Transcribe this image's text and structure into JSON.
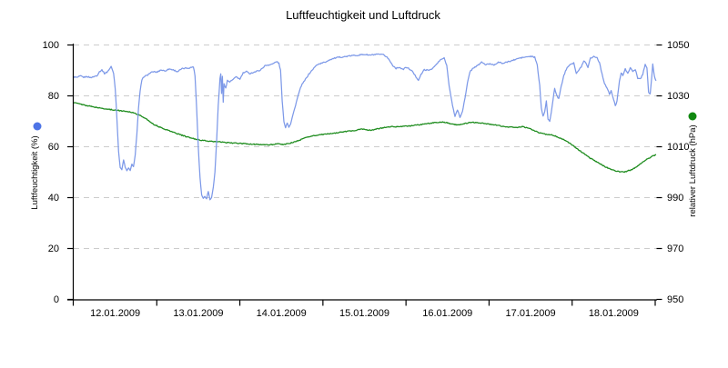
{
  "chart_data": {
    "type": "line",
    "title": "Luftfeuchtigkeit und Luftdruck",
    "x_axis": {
      "unit": "days, 0 = 12.01.2009 00:00",
      "range_days": [
        0,
        7.02
      ],
      "day_tick_positions": [
        1,
        2,
        3,
        4,
        5,
        6,
        7
      ],
      "labels": [
        "12.01.2009",
        "13.01.2009",
        "14.01.2009",
        "15.01.2009",
        "16.01.2009",
        "17.01.2009",
        "18.01.2009"
      ]
    },
    "left_axis": {
      "label": "Luftfeuchtigkeit (%)",
      "range": [
        0,
        100
      ],
      "ticks": [
        0,
        20,
        40,
        60,
        80,
        100
      ]
    },
    "right_axis": {
      "label": "relativer Luftdruck (hPa)",
      "range": [
        950,
        1050
      ],
      "ticks": [
        950,
        970,
        990,
        1010,
        1030,
        1050
      ]
    },
    "grid": {
      "horizontal_dashed_at_left_ticks": true,
      "color": "#cccccc"
    },
    "legend_position": "rotated axis labels with colored dots",
    "series": [
      {
        "name": "Luftfeuchtigkeit (%)",
        "axis": "left",
        "color": "#7d99e8",
        "marker_color": "#4d74e6",
        "points": [
          [
            0,
            87.5
          ],
          [
            0.04,
            87.2
          ],
          [
            0.08,
            87.8
          ],
          [
            0.12,
            87.3
          ],
          [
            0.16,
            87.6
          ],
          [
            0.2,
            87.2
          ],
          [
            0.24,
            87.5
          ],
          [
            0.28,
            88
          ],
          [
            0.31,
            89.5
          ],
          [
            0.34,
            90.2
          ],
          [
            0.37,
            88.8
          ],
          [
            0.4,
            89.3
          ],
          [
            0.43,
            90.5
          ],
          [
            0.45,
            91.5
          ],
          [
            0.48,
            89
          ],
          [
            0.5,
            83
          ],
          [
            0.52,
            71
          ],
          [
            0.54,
            58
          ],
          [
            0.56,
            52
          ],
          [
            0.58,
            51
          ],
          [
            0.6,
            54.8
          ],
          [
            0.62,
            52
          ],
          [
            0.64,
            50.5
          ],
          [
            0.66,
            51.5
          ],
          [
            0.68,
            50.8
          ],
          [
            0.7,
            53
          ],
          [
            0.72,
            52
          ],
          [
            0.74,
            57
          ],
          [
            0.76,
            65
          ],
          [
            0.78,
            75
          ],
          [
            0.8,
            82
          ],
          [
            0.82,
            86
          ],
          [
            0.84,
            87.5
          ],
          [
            0.88,
            88
          ],
          [
            0.92,
            89
          ],
          [
            0.96,
            89.5
          ],
          [
            1,
            89.3
          ],
          [
            1.05,
            90.2
          ],
          [
            1.1,
            89.8
          ],
          [
            1.15,
            90.6
          ],
          [
            1.2,
            90.2
          ],
          [
            1.25,
            89.5
          ],
          [
            1.3,
            90.6
          ],
          [
            1.35,
            90.9
          ],
          [
            1.4,
            91
          ],
          [
            1.44,
            91.5
          ],
          [
            1.46,
            88
          ],
          [
            1.48,
            75
          ],
          [
            1.5,
            60
          ],
          [
            1.52,
            48
          ],
          [
            1.54,
            41
          ],
          [
            1.56,
            39.8
          ],
          [
            1.58,
            40.5
          ],
          [
            1.6,
            39.7
          ],
          [
            1.62,
            42.5
          ],
          [
            1.64,
            39.2
          ],
          [
            1.66,
            40.2
          ],
          [
            1.68,
            44
          ],
          [
            1.7,
            50
          ],
          [
            1.72,
            62
          ],
          [
            1.74,
            76
          ],
          [
            1.76,
            87
          ],
          [
            1.77,
            88.5
          ],
          [
            1.78,
            81
          ],
          [
            1.79,
            87.5
          ],
          [
            1.8,
            77.5
          ],
          [
            1.81,
            85
          ],
          [
            1.83,
            83
          ],
          [
            1.85,
            86
          ],
          [
            1.88,
            85.5
          ],
          [
            1.92,
            86.5
          ],
          [
            1.96,
            87.5
          ],
          [
            2,
            86.5
          ],
          [
            2.04,
            89
          ],
          [
            2.08,
            89.5
          ],
          [
            2.12,
            88.8
          ],
          [
            2.16,
            89.2
          ],
          [
            2.2,
            89.6
          ],
          [
            2.25,
            90.2
          ],
          [
            2.3,
            91.8
          ],
          [
            2.35,
            92.2
          ],
          [
            2.4,
            92.6
          ],
          [
            2.44,
            93.5
          ],
          [
            2.47,
            92.8
          ],
          [
            2.49,
            90
          ],
          [
            2.51,
            78
          ],
          [
            2.53,
            70
          ],
          [
            2.55,
            67.5
          ],
          [
            2.57,
            69.5
          ],
          [
            2.59,
            67.8
          ],
          [
            2.61,
            69
          ],
          [
            2.63,
            71.5
          ],
          [
            2.66,
            75
          ],
          [
            2.7,
            80
          ],
          [
            2.74,
            84
          ],
          [
            2.78,
            86
          ],
          [
            2.83,
            88.5
          ],
          [
            2.88,
            90.5
          ],
          [
            2.93,
            92.3
          ],
          [
            2.98,
            92.8
          ],
          [
            3.03,
            93.3
          ],
          [
            3.08,
            94.2
          ],
          [
            3.14,
            94.8
          ],
          [
            3.2,
            95.2
          ],
          [
            3.27,
            95.4
          ],
          [
            3.34,
            95.8
          ],
          [
            3.42,
            96
          ],
          [
            3.5,
            96.3
          ],
          [
            3.56,
            96
          ],
          [
            3.62,
            96.2
          ],
          [
            3.68,
            96.3
          ],
          [
            3.73,
            96.1
          ],
          [
            3.77,
            95.3
          ],
          [
            3.8,
            94
          ],
          [
            3.84,
            92
          ],
          [
            3.88,
            90.8
          ],
          [
            3.92,
            91.3
          ],
          [
            3.96,
            90.3
          ],
          [
            4,
            91.2
          ],
          [
            4.04,
            90.6
          ],
          [
            4.08,
            89.5
          ],
          [
            4.12,
            87.5
          ],
          [
            4.15,
            86.2
          ],
          [
            4.18,
            88.3
          ],
          [
            4.22,
            90.3
          ],
          [
            4.27,
            90
          ],
          [
            4.32,
            90.8
          ],
          [
            4.37,
            92.5
          ],
          [
            4.42,
            94.3
          ],
          [
            4.46,
            94.8
          ],
          [
            4.49,
            92
          ],
          [
            4.52,
            84
          ],
          [
            4.56,
            76
          ],
          [
            4.59,
            72
          ],
          [
            4.62,
            74.5
          ],
          [
            4.65,
            71.5
          ],
          [
            4.68,
            74
          ],
          [
            4.71,
            79
          ],
          [
            4.74,
            85
          ],
          [
            4.77,
            89.5
          ],
          [
            4.81,
            91
          ],
          [
            4.86,
            91.8
          ],
          [
            4.91,
            93.3
          ],
          [
            4.96,
            92.2
          ],
          [
            5.01,
            92.6
          ],
          [
            5.06,
            92.2
          ],
          [
            5.11,
            93.2
          ],
          [
            5.17,
            92.8
          ],
          [
            5.23,
            93.4
          ],
          [
            5.29,
            94
          ],
          [
            5.36,
            94.8
          ],
          [
            5.43,
            95.2
          ],
          [
            5.5,
            95.5
          ],
          [
            5.55,
            95.2
          ],
          [
            5.58,
            92
          ],
          [
            5.61,
            84
          ],
          [
            5.63,
            75
          ],
          [
            5.65,
            72
          ],
          [
            5.67,
            74
          ],
          [
            5.69,
            78
          ],
          [
            5.71,
            70.8
          ],
          [
            5.73,
            69.8
          ],
          [
            5.76,
            76
          ],
          [
            5.79,
            83
          ],
          [
            5.81,
            80.5
          ],
          [
            5.84,
            78.8
          ],
          [
            5.87,
            84
          ],
          [
            5.9,
            88
          ],
          [
            5.94,
            91.3
          ],
          [
            5.98,
            92.5
          ],
          [
            6.02,
            93
          ],
          [
            6.05,
            88.7
          ],
          [
            6.08,
            90
          ],
          [
            6.11,
            91.5
          ],
          [
            6.14,
            93.8
          ],
          [
            6.17,
            92.8
          ],
          [
            6.19,
            91.3
          ],
          [
            6.22,
            94.8
          ],
          [
            6.26,
            95.5
          ],
          [
            6.3,
            95
          ],
          [
            6.33,
            93
          ],
          [
            6.36,
            88.5
          ],
          [
            6.39,
            85
          ],
          [
            6.42,
            83
          ],
          [
            6.45,
            80.6
          ],
          [
            6.47,
            82
          ],
          [
            6.5,
            78.5
          ],
          [
            6.52,
            76
          ],
          [
            6.54,
            78
          ],
          [
            6.57,
            86
          ],
          [
            6.59,
            89
          ],
          [
            6.61,
            88
          ],
          [
            6.64,
            90.5
          ],
          [
            6.67,
            89
          ],
          [
            6.7,
            91
          ],
          [
            6.73,
            89.5
          ],
          [
            6.76,
            90.5
          ],
          [
            6.79,
            87
          ],
          [
            6.82,
            86.6
          ],
          [
            6.85,
            88.5
          ],
          [
            6.88,
            92.4
          ],
          [
            6.9,
            91
          ],
          [
            6.92,
            81.5
          ],
          [
            6.94,
            80.6
          ],
          [
            6.96,
            88
          ],
          [
            6.97,
            92.5
          ],
          [
            6.99,
            88
          ],
          [
            7.01,
            85.7
          ]
        ]
      },
      {
        "name": "relativer Luftdruck (hPa)",
        "axis": "right",
        "color": "#1e8c1e",
        "marker_color": "#108810",
        "points": [
          [
            0,
            1027.4
          ],
          [
            0.1,
            1026.6
          ],
          [
            0.2,
            1025.9
          ],
          [
            0.3,
            1025.3
          ],
          [
            0.4,
            1024.8
          ],
          [
            0.5,
            1024.4
          ],
          [
            0.58,
            1024.1
          ],
          [
            0.66,
            1023.8
          ],
          [
            0.72,
            1023.4
          ],
          [
            0.78,
            1022.6
          ],
          [
            0.84,
            1021.6
          ],
          [
            0.9,
            1020.3
          ],
          [
            0.97,
            1018.7
          ],
          [
            1.05,
            1017.5
          ],
          [
            1.15,
            1016.3
          ],
          [
            1.25,
            1015.1
          ],
          [
            1.35,
            1014
          ],
          [
            1.45,
            1013.1
          ],
          [
            1.55,
            1012.5
          ],
          [
            1.65,
            1012.1
          ],
          [
            1.75,
            1011.9
          ],
          [
            1.85,
            1011.6
          ],
          [
            1.95,
            1011.4
          ],
          [
            2.05,
            1011.2
          ],
          [
            2.15,
            1011
          ],
          [
            2.25,
            1010.9
          ],
          [
            2.32,
            1010.7
          ],
          [
            2.4,
            1010.9
          ],
          [
            2.46,
            1011.1
          ],
          [
            2.52,
            1010.9
          ],
          [
            2.58,
            1011.2
          ],
          [
            2.65,
            1011.8
          ],
          [
            2.72,
            1012.6
          ],
          [
            2.8,
            1013.7
          ],
          [
            2.88,
            1014.3
          ],
          [
            2.96,
            1014.7
          ],
          [
            3.05,
            1015
          ],
          [
            3.15,
            1015.4
          ],
          [
            3.25,
            1015.9
          ],
          [
            3.33,
            1016.2
          ],
          [
            3.4,
            1016.5
          ],
          [
            3.47,
            1017
          ],
          [
            3.54,
            1016.5
          ],
          [
            3.6,
            1016.6
          ],
          [
            3.68,
            1017.2
          ],
          [
            3.76,
            1017.7
          ],
          [
            3.85,
            1017.9
          ],
          [
            3.95,
            1018
          ],
          [
            4.05,
            1018.2
          ],
          [
            4.15,
            1018.6
          ],
          [
            4.25,
            1019.1
          ],
          [
            4.35,
            1019.5
          ],
          [
            4.43,
            1019.7
          ],
          [
            4.5,
            1019.4
          ],
          [
            4.57,
            1018.8
          ],
          [
            4.63,
            1018.6
          ],
          [
            4.7,
            1019.1
          ],
          [
            4.78,
            1019.6
          ],
          [
            4.86,
            1019.5
          ],
          [
            4.94,
            1019.2
          ],
          [
            5.02,
            1018.8
          ],
          [
            5.1,
            1018.4
          ],
          [
            5.18,
            1018
          ],
          [
            5.26,
            1017.7
          ],
          [
            5.33,
            1017.6
          ],
          [
            5.4,
            1017.9
          ],
          [
            5.47,
            1017.4
          ],
          [
            5.54,
            1016.4
          ],
          [
            5.6,
            1015.5
          ],
          [
            5.67,
            1015
          ],
          [
            5.73,
            1014.8
          ],
          [
            5.8,
            1014.2
          ],
          [
            5.87,
            1013.2
          ],
          [
            5.93,
            1012.2
          ],
          [
            6,
            1010.7
          ],
          [
            6.07,
            1009
          ],
          [
            6.14,
            1007.3
          ],
          [
            6.21,
            1005.7
          ],
          [
            6.28,
            1004.3
          ],
          [
            6.35,
            1003
          ],
          [
            6.42,
            1001.8
          ],
          [
            6.49,
            1000.8
          ],
          [
            6.56,
            1000.3
          ],
          [
            6.63,
            1000.1
          ],
          [
            6.7,
            1000.8
          ],
          [
            6.77,
            1002
          ],
          [
            6.84,
            1003.7
          ],
          [
            6.91,
            1005.3
          ],
          [
            6.97,
            1006.3
          ],
          [
            7.01,
            1006.9
          ]
        ]
      }
    ],
    "colors": {
      "background": "#ffffff",
      "grid": "#cccccc",
      "axis": "#000000",
      "text": "#000000",
      "humidity_line": "#7d99e8",
      "humidity_marker": "#4d74e6",
      "pressure_line": "#1e8c1e",
      "pressure_marker": "#108810"
    }
  }
}
